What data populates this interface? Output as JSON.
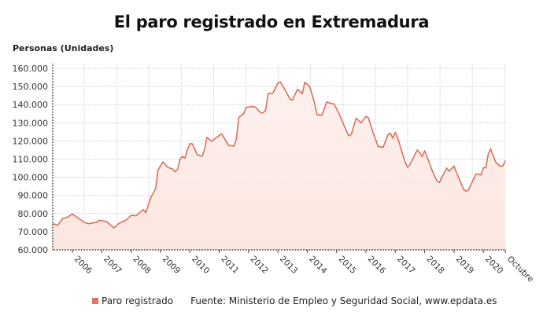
{
  "title": "El paro registrado en Extremadura",
  "colors": {
    "line": "#d9705a",
    "fill": "#fdeeea",
    "grid": "#cccccc"
  },
  "legend": {
    "series_label": "Paro registrado",
    "source": "Fuente: Ministerio de Empleo y Seguridad Social, www.epdata.es"
  },
  "chart_data": {
    "type": "area",
    "title": "El paro registrado en Extremadura",
    "ylabel": "Personas (Unidades)",
    "xlabel": "",
    "ylim": [
      60000,
      160000
    ],
    "yticks": [
      "60.000",
      "70.000",
      "80.000",
      "90.000",
      "100.000",
      "110.000",
      "120.000",
      "130.000",
      "140.000",
      "150.000",
      "160.000"
    ],
    "xticks": [
      "2006",
      "2007",
      "2008",
      "2009",
      "2010",
      "2011",
      "2012",
      "2013",
      "2014",
      "2015",
      "2016",
      "2017",
      "2018",
      "2019",
      "2020",
      "Octubre"
    ],
    "grid": true,
    "legend_position": "bottom",
    "series": [
      {
        "name": "Paro registrado",
        "points": [
          [
            "2005-05",
            74500
          ],
          [
            "2005-07",
            73500
          ],
          [
            "2005-09",
            77300
          ],
          [
            "2005-11",
            78000
          ],
          [
            "2006-01",
            79800
          ],
          [
            "2006-06",
            75000
          ],
          [
            "2006-08",
            74400
          ],
          [
            "2006-11",
            75300
          ],
          [
            "2006-12",
            76300
          ],
          [
            "2007-03",
            75600
          ],
          [
            "2007-06",
            72100
          ],
          [
            "2007-08",
            74500
          ],
          [
            "2007-11",
            76500
          ],
          [
            "2008-01",
            79000
          ],
          [
            "2008-03",
            78800
          ],
          [
            "2008-06",
            82200
          ],
          [
            "2008-07",
            80500
          ],
          [
            "2008-09",
            88700
          ],
          [
            "2008-11",
            93700
          ],
          [
            "2008-12",
            104000
          ],
          [
            "2009-02",
            108500
          ],
          [
            "2009-04",
            105500
          ],
          [
            "2009-06",
            104500
          ],
          [
            "2009-07",
            103000
          ],
          [
            "2009-08",
            104500
          ],
          [
            "2009-09",
            110000
          ],
          [
            "2009-10",
            111500
          ],
          [
            "2009-11",
            110500
          ],
          [
            "2009-12",
            115000
          ],
          [
            "2010-01",
            118500
          ],
          [
            "2010-02",
            118500
          ],
          [
            "2010-04",
            112500
          ],
          [
            "2010-06",
            111500
          ],
          [
            "2010-07",
            115000
          ],
          [
            "2010-08",
            122000
          ],
          [
            "2010-10",
            119800
          ],
          [
            "2010-12",
            122000
          ],
          [
            "2011-02",
            124000
          ],
          [
            "2011-05",
            117300
          ],
          [
            "2011-06",
            117500
          ],
          [
            "2011-07",
            117000
          ],
          [
            "2011-08",
            121000
          ],
          [
            "2011-09",
            133000
          ],
          [
            "2011-11",
            135000
          ],
          [
            "2011-12",
            138500
          ],
          [
            "2012-03",
            139000
          ],
          [
            "2012-04",
            138500
          ],
          [
            "2012-06",
            135500
          ],
          [
            "2012-07",
            135500
          ],
          [
            "2012-08",
            137000
          ],
          [
            "2012-09",
            146000
          ],
          [
            "2012-11",
            146500
          ],
          [
            "2013-01",
            151800
          ],
          [
            "2013-02",
            152600
          ],
          [
            "2013-04",
            148000
          ],
          [
            "2013-06",
            143000
          ],
          [
            "2013-07",
            142500
          ],
          [
            "2013-09",
            148500
          ],
          [
            "2013-11",
            146000
          ],
          [
            "2013-12",
            152400
          ],
          [
            "2014-02",
            150000
          ],
          [
            "2014-04",
            141000
          ],
          [
            "2014-05",
            134500
          ],
          [
            "2014-07",
            134100
          ],
          [
            "2014-09",
            141500
          ],
          [
            "2014-11",
            140500
          ],
          [
            "2014-12",
            140400
          ],
          [
            "2015-02",
            135000
          ],
          [
            "2015-05",
            125700
          ],
          [
            "2015-06",
            122800
          ],
          [
            "2015-07",
            123500
          ],
          [
            "2015-09",
            132500
          ],
          [
            "2015-11",
            130000
          ],
          [
            "2016-01",
            133500
          ],
          [
            "2016-02",
            132800
          ],
          [
            "2016-04",
            124300
          ],
          [
            "2016-06",
            117000
          ],
          [
            "2016-08",
            116400
          ],
          [
            "2016-10",
            123500
          ],
          [
            "2016-11",
            124300
          ],
          [
            "2016-12",
            121500
          ],
          [
            "2017-01",
            124700
          ],
          [
            "2017-02",
            121500
          ],
          [
            "2017-05",
            108500
          ],
          [
            "2017-06",
            105500
          ],
          [
            "2017-07",
            107000
          ],
          [
            "2017-10",
            115000
          ],
          [
            "2017-11",
            113500
          ],
          [
            "2017-12",
            111300
          ],
          [
            "2018-01",
            114600
          ],
          [
            "2018-02",
            111300
          ],
          [
            "2018-04",
            104000
          ],
          [
            "2018-06",
            98000
          ],
          [
            "2018-07",
            97000
          ],
          [
            "2018-10",
            105100
          ],
          [
            "2018-11",
            103300
          ],
          [
            "2019-01",
            106200
          ],
          [
            "2019-02",
            102600
          ],
          [
            "2019-05",
            93200
          ],
          [
            "2019-06",
            92200
          ],
          [
            "2019-07",
            93200
          ],
          [
            "2019-10",
            101900
          ],
          [
            "2019-12",
            101200
          ],
          [
            "2020-01",
            105200
          ],
          [
            "2020-02",
            105200
          ],
          [
            "2020-03",
            112700
          ],
          [
            "2020-04",
            115600
          ],
          [
            "2020-06",
            108500
          ],
          [
            "2020-08",
            105900
          ],
          [
            "2020-09",
            106300
          ],
          [
            "2020-10",
            109200
          ]
        ]
      }
    ]
  }
}
